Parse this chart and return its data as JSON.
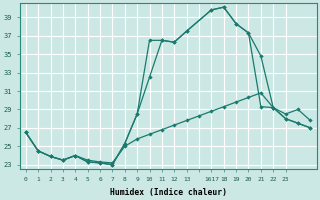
{
  "xlabel": "Humidex (Indice chaleur)",
  "bg_color": "#cce8e5",
  "grid_color": "#ffffff",
  "line_color": "#1a7a6e",
  "xlim": [
    -0.5,
    23.5
  ],
  "ylim": [
    22.5,
    40.5
  ],
  "xtick_labels": [
    "0",
    "1",
    "2",
    "3",
    "4",
    "5",
    "6",
    "7",
    "8",
    "9",
    "10",
    "11",
    "12",
    "13",
    "1617",
    "18",
    "19",
    "20",
    "21",
    "22",
    "23",
    ""
  ],
  "yticks": [
    23,
    25,
    27,
    29,
    31,
    33,
    35,
    37,
    39
  ],
  "line1_x": [
    0,
    1,
    2,
    3,
    4,
    5,
    6,
    7,
    8,
    9,
    10,
    11,
    12,
    13,
    15,
    16,
    17,
    18,
    19,
    20,
    21,
    22,
    23
  ],
  "line1_y": [
    26.5,
    24.5,
    23.9,
    23.5,
    24.0,
    23.3,
    23.2,
    23.0,
    25.3,
    28.5,
    36.5,
    36.5,
    36.3,
    37.5,
    39.8,
    40.1,
    38.3,
    37.3,
    29.3,
    29.2,
    28.0,
    27.5,
    27.0
  ],
  "line2_x": [
    0,
    1,
    2,
    3,
    4,
    5,
    6,
    7,
    8,
    9,
    10,
    11,
    12,
    13,
    15,
    16,
    17,
    18,
    19,
    20,
    21,
    22,
    23
  ],
  "line2_y": [
    26.5,
    24.5,
    23.9,
    23.5,
    24.0,
    23.3,
    23.2,
    23.0,
    25.3,
    28.5,
    32.5,
    36.5,
    36.3,
    37.5,
    39.8,
    40.1,
    38.3,
    37.3,
    34.8,
    29.2,
    28.0,
    27.5,
    27.0
  ],
  "line3_x": [
    0,
    1,
    2,
    3,
    4,
    5,
    6,
    7,
    8,
    9,
    10,
    11,
    12,
    13,
    14,
    15,
    16,
    17,
    18,
    19,
    20,
    21,
    22,
    23
  ],
  "line3_y": [
    26.5,
    24.5,
    23.9,
    23.5,
    24.0,
    23.5,
    23.3,
    23.2,
    25.0,
    25.8,
    26.3,
    26.8,
    27.3,
    27.8,
    28.3,
    28.8,
    29.3,
    29.8,
    30.3,
    30.8,
    29.2,
    28.5,
    29.0,
    27.8
  ]
}
